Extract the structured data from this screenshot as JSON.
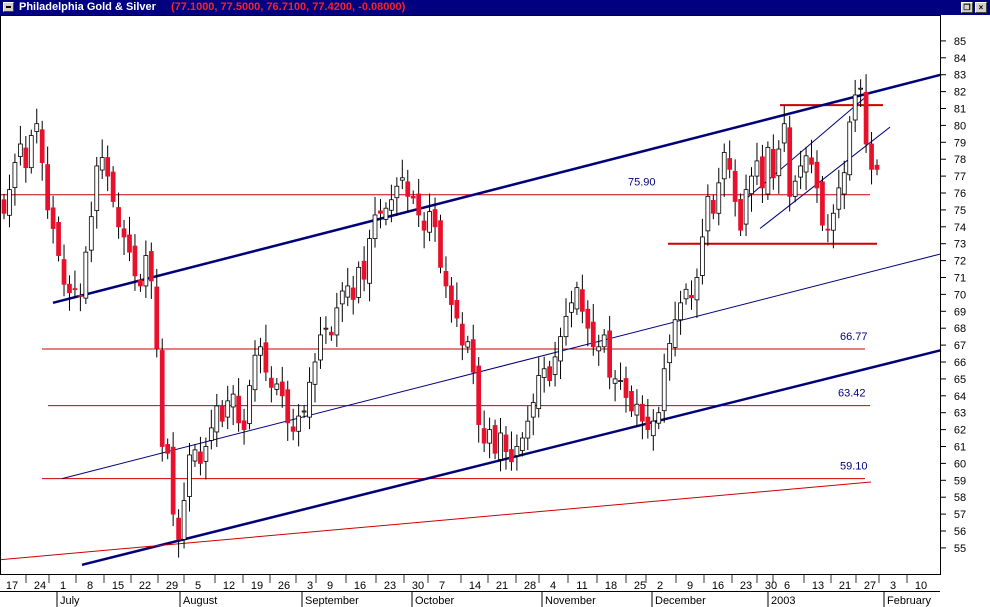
{
  "window": {
    "title": "Philadelphia Gold & Silver",
    "ohlc": "(77.1000, 77.5000, 76.7100, 77.4200, -0.08000)",
    "restore_icon": "restore-icon",
    "close_icon": "close-icon",
    "restore_glyph": "❐",
    "close_glyph": "×"
  },
  "chart_data": {
    "type": "candlestick",
    "ylim": [
      54,
      86
    ],
    "y_ticks": [
      55,
      56,
      57,
      58,
      59,
      60,
      61,
      62,
      63,
      64,
      65,
      66,
      67,
      68,
      69,
      70,
      71,
      72,
      73,
      74,
      75,
      76,
      77,
      78,
      79,
      80,
      81,
      82,
      83,
      84,
      85
    ],
    "x_day_labels": [
      "17",
      "24",
      "1",
      "8",
      "15",
      "22",
      "29",
      "5",
      "12",
      "19",
      "26",
      "3",
      "9",
      "16",
      "23",
      "30",
      "7",
      "14",
      "21",
      "28",
      "4",
      "11",
      "18",
      "25",
      "2",
      "9",
      "16",
      "23",
      "30",
      "6",
      "13",
      "21",
      "27",
      "3",
      "10"
    ],
    "month_labels": [
      "July",
      "August",
      "September",
      "October",
      "November",
      "December",
      "2003",
      "February"
    ],
    "colors": {
      "up": "#ffffff",
      "down": "#e8102a",
      "trend": "#00007a",
      "level": "#cc0000",
      "grid_text": "#000000"
    },
    "support_resistance_levels": [
      {
        "value": 75.9,
        "label": "75.90"
      },
      {
        "value": 66.77,
        "label": "66.77"
      },
      {
        "value": 63.42,
        "label": "63.42"
      },
      {
        "value": 59.1,
        "label": "59.10"
      }
    ],
    "extra_levels": [
      81.2,
      73.0
    ],
    "closes": [
      74.8,
      76.2,
      77.8,
      78.9,
      77.5,
      79.4,
      80.1,
      77.8,
      75.0,
      73.9,
      72.3,
      70.6,
      70.1,
      70.3,
      69.9,
      72.5,
      74.6,
      77.6,
      78.1,
      77.0,
      75.5,
      74.0,
      73.4,
      72.5,
      71.1,
      70.5,
      72.3,
      70.8,
      66.8,
      61.0,
      60.6,
      57.0,
      55.5,
      57.8,
      60.5,
      60.8,
      60.0,
      61.0,
      62.1,
      63.4,
      62.5,
      63.7,
      64.1,
      62.4,
      62.0,
      64.6,
      66.4,
      66.9,
      65.4,
      64.5,
      64.7,
      64.0,
      62.4,
      61.9,
      62.8,
      63.1,
      64.8,
      66.0,
      67.6,
      68.0,
      67.6,
      69.2,
      70.2,
      70.5,
      69.7,
      71.6,
      70.9,
      73.3,
      74.7,
      74.8,
      75.1,
      75.6,
      76.4,
      76.9,
      75.8,
      75.7,
      74.7,
      73.8,
      74.9,
      74.0,
      71.6,
      70.5,
      69.4,
      68.6,
      67.0,
      67.2,
      65.4,
      62.3,
      61.2,
      62.0,
      60.6,
      61.8,
      60.7,
      60.1,
      61.0,
      61.5,
      62.5,
      63.6,
      65.2,
      65.6,
      64.9,
      66.3,
      67.5,
      68.7,
      69.5,
      70.4,
      69.0,
      68.0,
      66.9,
      66.9,
      67.6,
      65.1,
      65.0,
      64.9,
      63.9,
      63.1,
      63.5,
      62.5,
      62.0,
      62.5,
      63.0,
      65.6,
      67.1,
      68.5,
      69.5,
      70.3,
      69.8,
      71.0,
      73.4,
      75.8,
      74.8,
      76.6,
      78.4,
      77.4,
      75.5,
      73.8,
      76.2,
      77.0,
      77.9,
      76.3,
      78.7,
      76.9,
      78.6,
      80.1,
      75.8,
      76.7,
      77.6,
      78.2,
      77.7,
      76.3,
      74.1,
      73.8,
      74.8,
      76.3,
      77.2,
      80.2,
      81.8,
      82.2,
      78.9,
      77.4,
      77.4
    ]
  }
}
